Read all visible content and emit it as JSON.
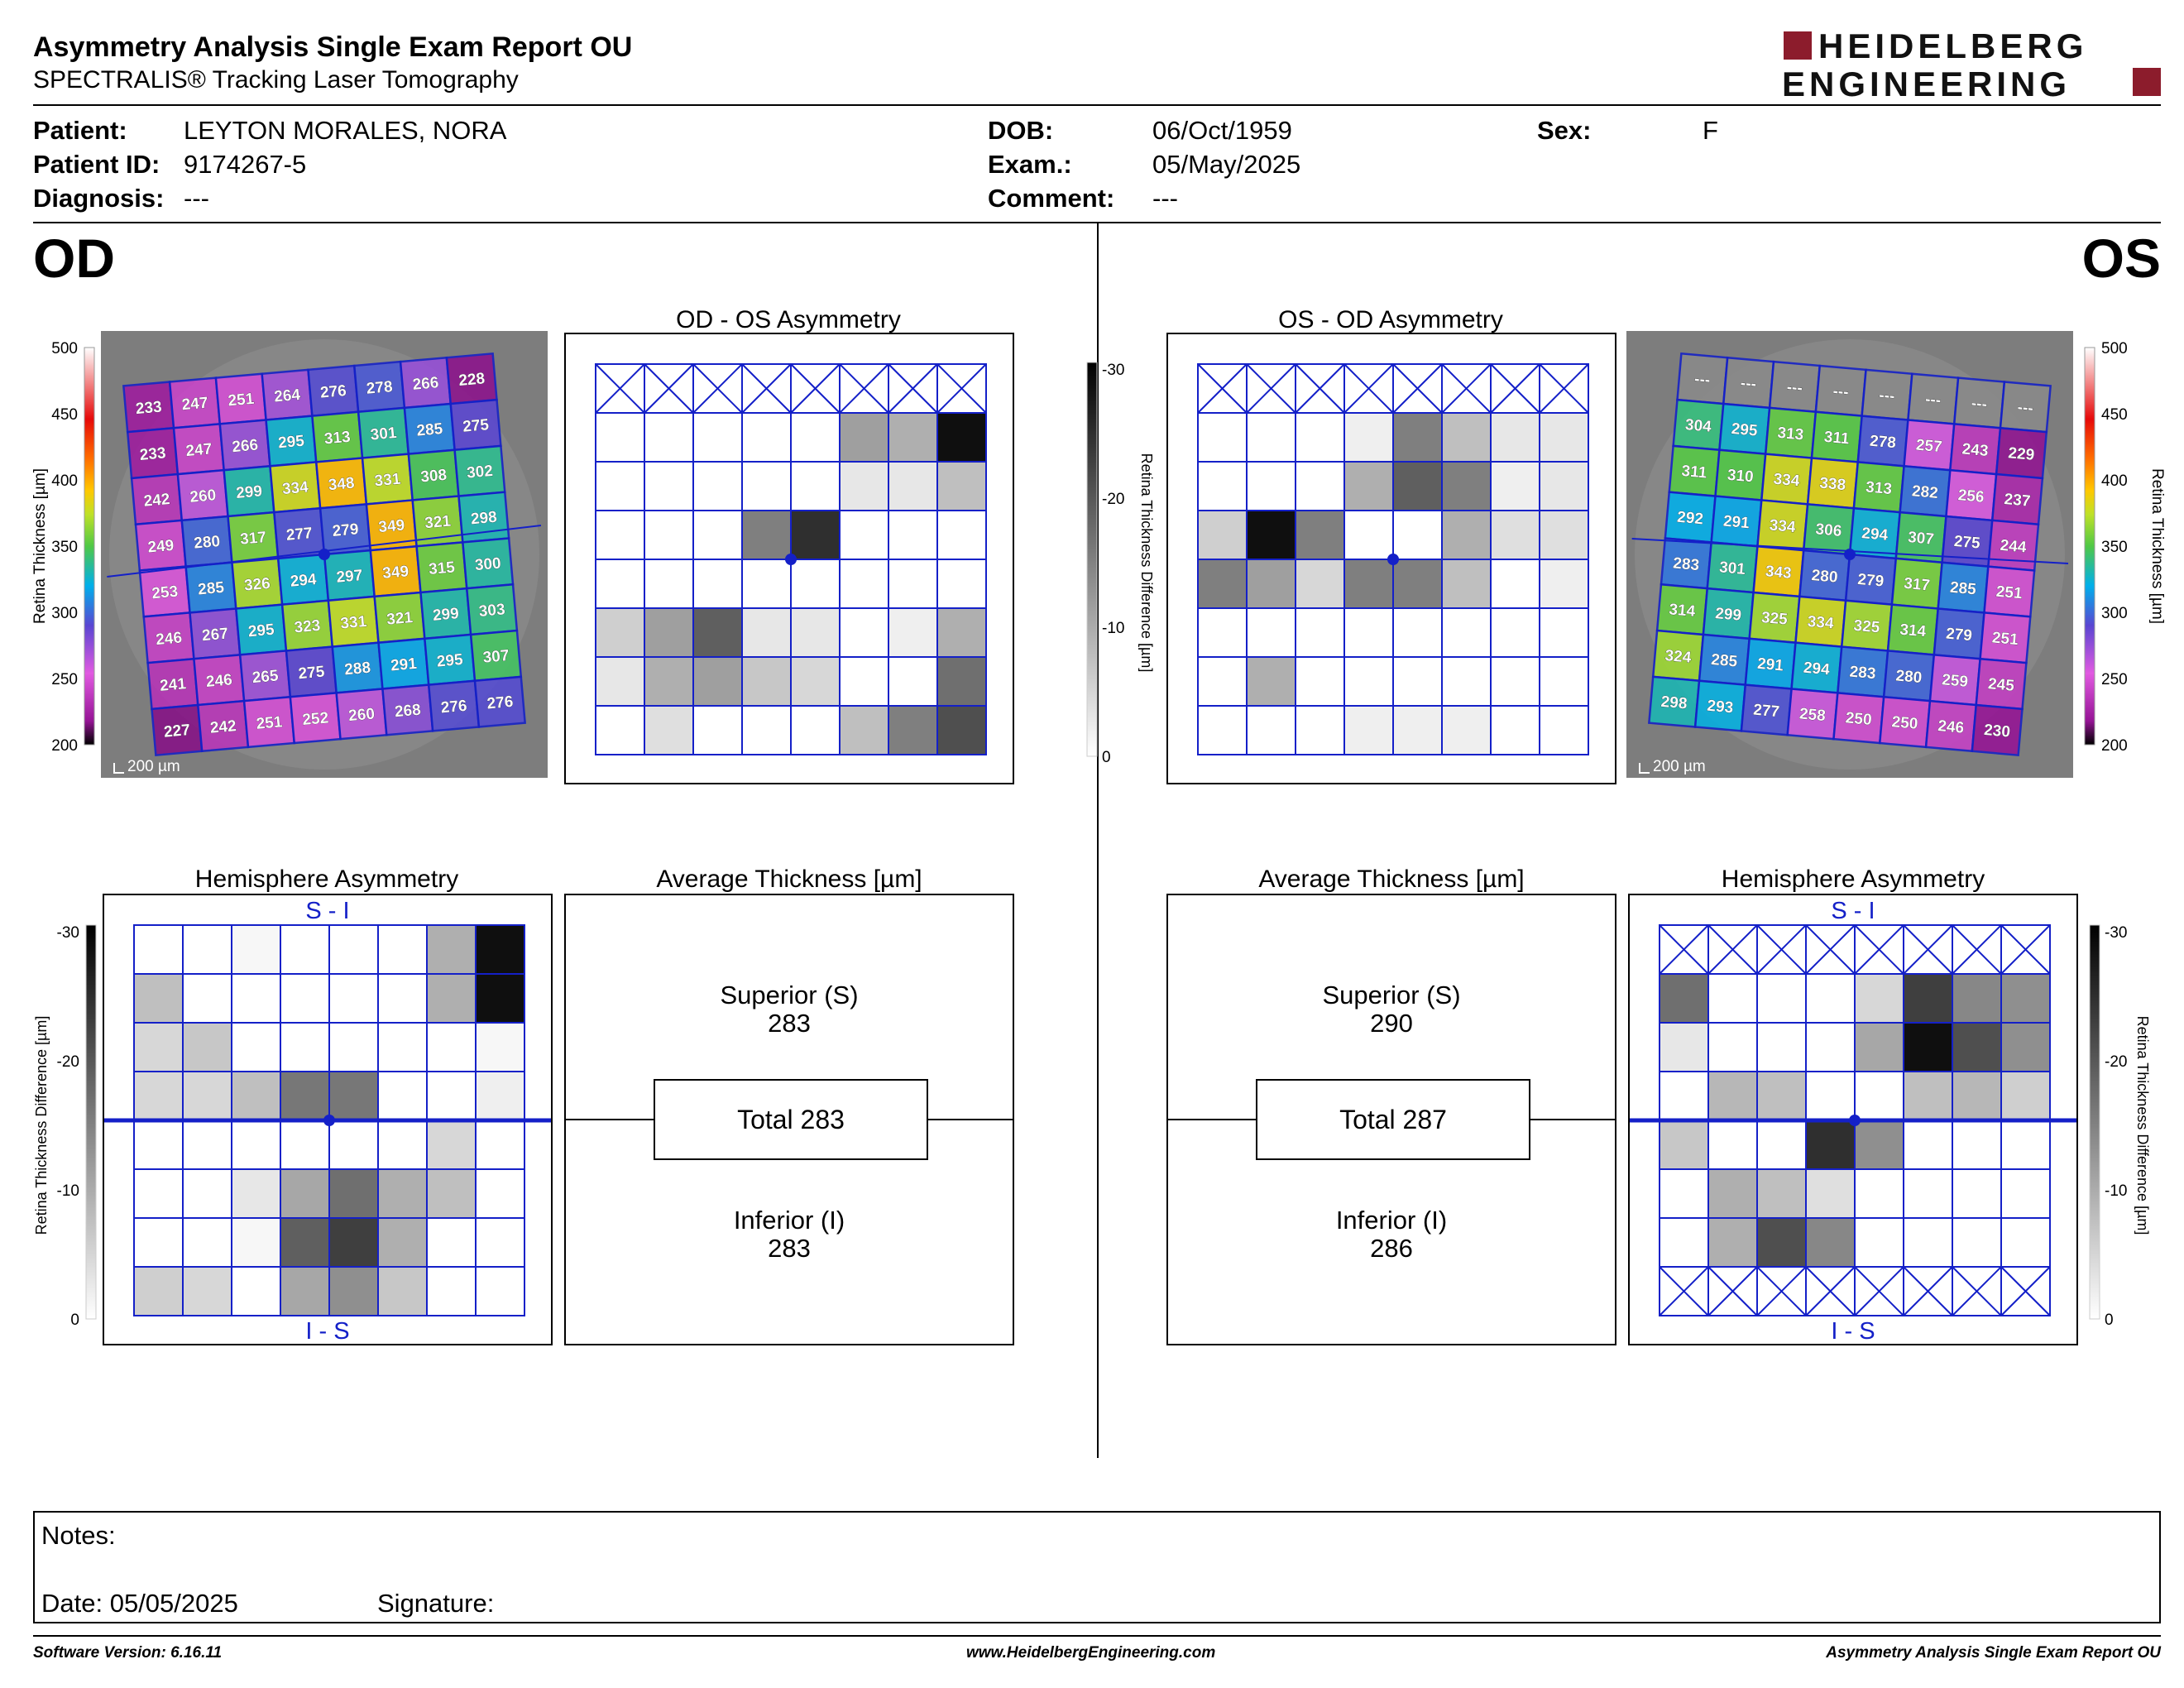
{
  "report": {
    "title": "Asymmetry Analysis Single Exam Report OU",
    "subtitle": "SPECTRALIS® Tracking Laser Tomography",
    "logo_line1": "HEIDELBERG",
    "logo_line2": "ENGINEERING"
  },
  "patient": {
    "patient_label": "Patient:",
    "patient": "LEYTON MORALES, NORA",
    "id_label": "Patient ID:",
    "id": "9174267-5",
    "diagnosis_label": "Diagnosis:",
    "diagnosis": "---",
    "dob_label": "DOB:",
    "dob": "06/Oct/1959",
    "exam_label": "Exam.:",
    "exam": "05/May/2025",
    "comment_label": "Comment:",
    "comment": "---",
    "sex_label": "Sex:",
    "sex": "F"
  },
  "eyes": {
    "left": "OD",
    "right": "OS"
  },
  "panels": {
    "od_os_asym": "OD - OS Asymmetry",
    "os_od_asym": "OS - OD Asymmetry",
    "hemi": "Hemisphere Asymmetry",
    "avg": "Average Thickness [µm]",
    "si": "S - I",
    "is": "I - S",
    "scale_bar": "200 µm"
  },
  "axes": {
    "thickness_label": "Retina Thickness [µm]",
    "diff_label": "Retina Thickness Difference [µm]",
    "thickness_ticks": [
      "500",
      "450",
      "400",
      "350",
      "300",
      "250",
      "200"
    ],
    "diff_ticks": [
      "-30",
      "-20",
      "-10",
      "0"
    ]
  },
  "average_od": {
    "superior_label": "Superior (S)",
    "superior": "283",
    "total": "Total 283",
    "inferior_label": "Inferior (I)",
    "inferior": "283"
  },
  "average_os": {
    "superior_label": "Superior (S)",
    "superior": "290",
    "total": "Total 287",
    "inferior_label": "Inferior (I)",
    "inferior": "286"
  },
  "od_thickness": [
    [
      233,
      247,
      251,
      264,
      276,
      278,
      266,
      228
    ],
    [
      233,
      247,
      266,
      295,
      313,
      301,
      285,
      275
    ],
    [
      242,
      260,
      299,
      334,
      348,
      331,
      308,
      302
    ],
    [
      249,
      280,
      317,
      277,
      279,
      349,
      321,
      298
    ],
    [
      253,
      285,
      326,
      294,
      297,
      349,
      315,
      300
    ],
    [
      246,
      267,
      295,
      323,
      331,
      321,
      299,
      303
    ],
    [
      241,
      246,
      265,
      275,
      288,
      291,
      295,
      307
    ],
    [
      227,
      242,
      251,
      252,
      260,
      268,
      276,
      276
    ]
  ],
  "os_thickness": [
    [
      "---",
      "---",
      "---",
      "---",
      "---",
      "---",
      "---",
      "---"
    ],
    [
      "304",
      "295",
      "313",
      "311",
      "278",
      "257",
      "243",
      "229"
    ],
    [
      "311",
      "310",
      "334",
      "338",
      "313",
      "282",
      "256",
      "237"
    ],
    [
      "292",
      "291",
      "334",
      "306",
      "294",
      "307",
      "275",
      "244"
    ],
    [
      "283",
      "301",
      "343",
      "280",
      "279",
      "317",
      "285",
      "251"
    ],
    [
      "314",
      "299",
      "325",
      "334",
      "325",
      "314",
      "279",
      "251"
    ],
    [
      "324",
      "285",
      "291",
      "294",
      "283",
      "280",
      "259",
      "245"
    ],
    [
      "298",
      "293",
      "277",
      "258",
      "250",
      "250",
      "246",
      "230"
    ]
  ],
  "od_os_diff": [
    [
      "x",
      "x",
      "x",
      "x",
      "x",
      "x",
      "x",
      "x"
    ],
    [
      0,
      0,
      0,
      0,
      0,
      12,
      10,
      30
    ],
    [
      0,
      0,
      0,
      0,
      0,
      3,
      3,
      8
    ],
    [
      0,
      0,
      0,
      16,
      26,
      0,
      0,
      0
    ],
    [
      0,
      0,
      0,
      0,
      0,
      0,
      0,
      0
    ],
    [
      6,
      12,
      20,
      3,
      3,
      0,
      2,
      10
    ],
    [
      3,
      10,
      12,
      7,
      5,
      0,
      0,
      18
    ],
    [
      0,
      4,
      0,
      0,
      0,
      8,
      16,
      22
    ]
  ],
  "os_od_diff": [
    [
      "x",
      "x",
      "x",
      "x",
      "x",
      "x",
      "x",
      "x"
    ],
    [
      0,
      0,
      0,
      2,
      16,
      8,
      3,
      3
    ],
    [
      0,
      0,
      0,
      10,
      20,
      16,
      2,
      3
    ],
    [
      6,
      30,
      16,
      0,
      0,
      10,
      4,
      4
    ],
    [
      16,
      12,
      5,
      16,
      16,
      8,
      0,
      2
    ],
    [
      0,
      0,
      0,
      0,
      0,
      0,
      0,
      0
    ],
    [
      0,
      10,
      0,
      0,
      0,
      0,
      0,
      0
    ],
    [
      0,
      0,
      0,
      2,
      2,
      2,
      0,
      0
    ]
  ],
  "od_hemi": [
    [
      0,
      0,
      1,
      0,
      0,
      0,
      10,
      30
    ],
    [
      8,
      0,
      0,
      0,
      0,
      0,
      10,
      30
    ],
    [
      5,
      7,
      0,
      0,
      0,
      0,
      0,
      1
    ],
    [
      5,
      5,
      8,
      17,
      17,
      0,
      0,
      2
    ],
    [
      0,
      0,
      0,
      0,
      0,
      0,
      5,
      0
    ],
    [
      0,
      0,
      3,
      11,
      18,
      10,
      8,
      0
    ],
    [
      0,
      0,
      1,
      20,
      24,
      10,
      0,
      0
    ],
    [
      6,
      5,
      0,
      11,
      14,
      7,
      0,
      0
    ]
  ],
  "os_hemi": [
    [
      "x",
      "x",
      "x",
      "x",
      "x",
      "x",
      "x",
      "x"
    ],
    [
      18,
      0,
      0,
      0,
      5,
      24,
      15,
      14
    ],
    [
      3,
      0,
      0,
      0,
      11,
      30,
      22,
      14
    ],
    [
      0,
      9,
      8,
      0,
      0,
      8,
      9,
      6
    ],
    [
      7,
      0,
      0,
      26,
      14,
      0,
      0,
      0
    ],
    [
      0,
      10,
      8,
      4,
      0,
      0,
      0,
      0
    ],
    [
      0,
      10,
      22,
      15,
      0,
      0,
      0,
      0
    ],
    [
      "x",
      "x",
      "x",
      "x",
      "x",
      "x",
      "x",
      "x"
    ]
  ],
  "notes": {
    "notes_label": "Notes:",
    "date_label": "Date: 05/05/2025",
    "signature_label": "Signature:"
  },
  "footer": {
    "software": "Software Version: 6.16.11",
    "website": "www.HeidelbergEngineering.com",
    "report_name": "Asymmetry Analysis Single Exam Report OU"
  }
}
